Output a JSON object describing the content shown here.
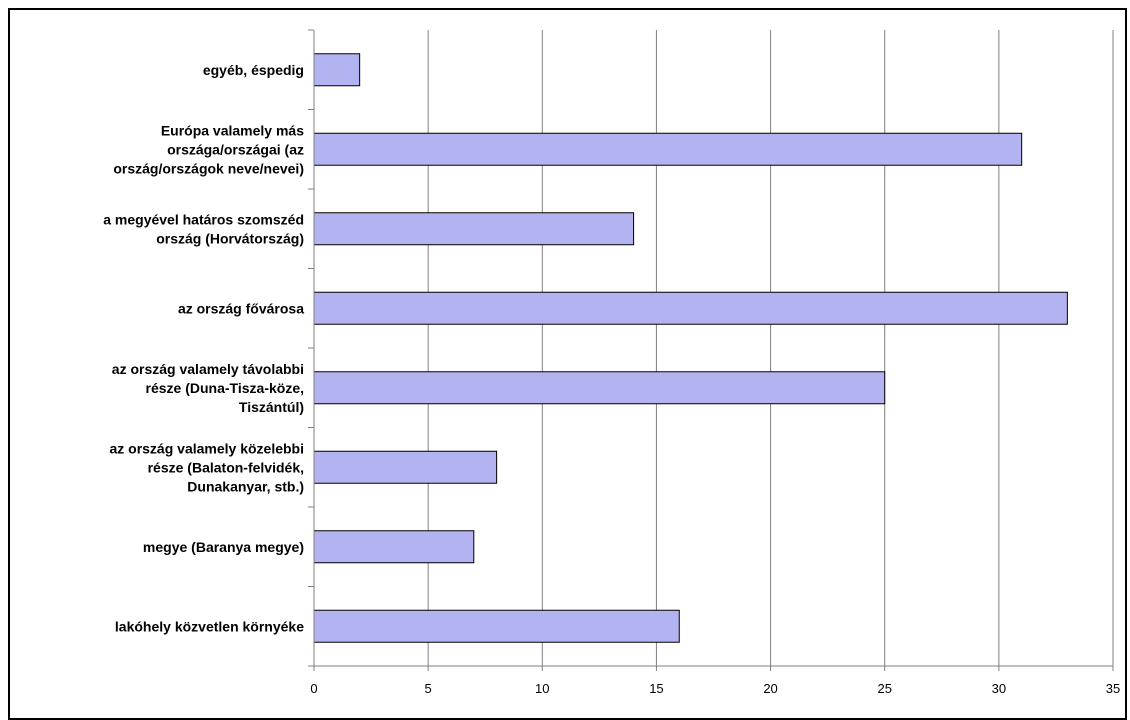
{
  "chart_data": {
    "type": "bar",
    "orientation": "horizontal",
    "categories": [
      "lakóhely közvetlen környéke",
      "megye (Baranya megye)",
      "az ország valamely közelebbi rész (Balaton-felvidék, Dunakanyar, stb.)",
      "az ország valamely távolabbi része (Duna-Tisza-köze, Tiszántúl)",
      "az ország fővárosa",
      "a megyével határos szomszéd ország (Horvátország)",
      "Európa valamely más országa/országai (az ország/országok neve/nevei)",
      "egyéb, éspedig"
    ],
    "category_lines": [
      [
        "lakóhely közvetlen környéke"
      ],
      [
        "megye (Baranya megye)"
      ],
      [
        "az ország valamely közelebbi",
        "része (Balaton-felvidék,",
        "Dunakanyar, stb.)"
      ],
      [
        "az ország valamely távolabbi",
        "része (Duna-Tisza-köze,",
        "Tiszántúl)"
      ],
      [
        "az ország fővárosa"
      ],
      [
        "a megyével határos szomszéd",
        "ország (Horvátország)"
      ],
      [
        "Európa valamely más",
        "országa/országai (az",
        "ország/országok neve/nevei)"
      ],
      [
        "egyéb, éspedig"
      ]
    ],
    "values": [
      16,
      7,
      8,
      25,
      33,
      14,
      31,
      2
    ],
    "xlim": [
      0,
      35
    ],
    "xticks": [
      0,
      5,
      10,
      15,
      20,
      25,
      30,
      35
    ],
    "grid": true,
    "legend": "none",
    "bar_color": "#b3b3f2",
    "bar_edge_color": "#000000",
    "grid_color": "#808080"
  }
}
